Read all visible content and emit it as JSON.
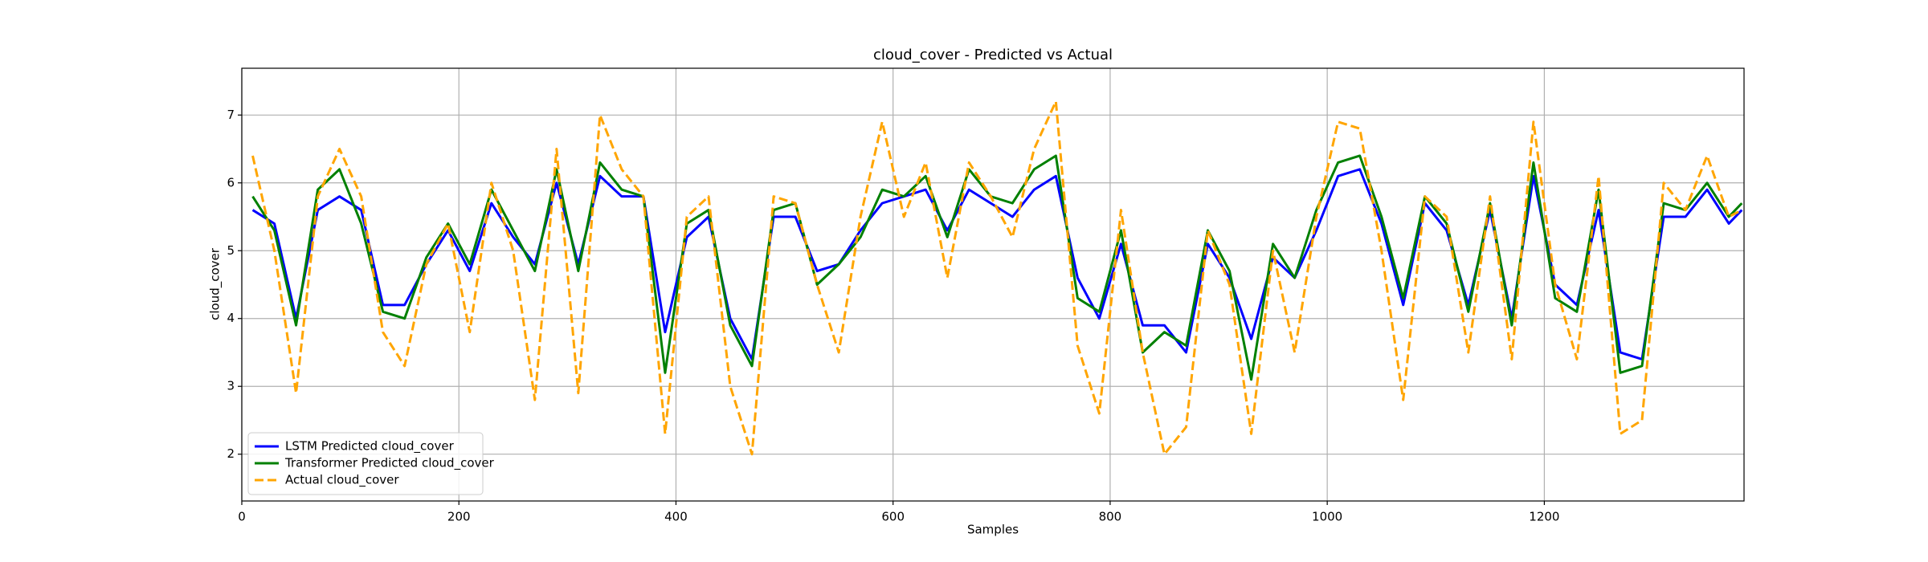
{
  "chart_data": {
    "type": "line",
    "title": "cloud_cover - Predicted vs Actual",
    "x_label": "Samples",
    "y_label": "cloud_cover",
    "x": [
      10,
      30,
      50,
      70,
      90,
      110,
      130,
      150,
      170,
      190,
      210,
      230,
      250,
      270,
      290,
      310,
      330,
      350,
      370,
      390,
      410,
      430,
      450,
      470,
      490,
      510,
      530,
      550,
      570,
      590,
      610,
      630,
      650,
      670,
      690,
      710,
      730,
      750,
      770,
      790,
      810,
      830,
      850,
      870,
      890,
      910,
      930,
      950,
      970,
      990,
      1010,
      1030,
      1050,
      1070,
      1090,
      1110,
      1130,
      1150,
      1170,
      1190,
      1210,
      1230,
      1250,
      1270,
      1290,
      1310,
      1330,
      1350,
      1370,
      1382
    ],
    "series": [
      {
        "name": "LSTM Predicted cloud_cover",
        "color": "#0000ff",
        "dashed": false,
        "values": [
          5.6,
          5.4,
          4.0,
          5.6,
          5.8,
          5.6,
          4.2,
          4.2,
          4.8,
          5.3,
          4.7,
          5.7,
          5.2,
          4.8,
          6.0,
          4.8,
          6.1,
          5.8,
          5.8,
          3.8,
          5.2,
          5.5,
          4.0,
          3.4,
          5.5,
          5.5,
          4.7,
          4.8,
          5.3,
          5.7,
          5.8,
          5.9,
          5.3,
          5.9,
          5.7,
          5.5,
          5.9,
          6.1,
          4.6,
          4.0,
          5.1,
          3.9,
          3.9,
          3.5,
          5.1,
          4.6,
          3.7,
          4.9,
          4.6,
          5.3,
          6.1,
          6.2,
          5.4,
          4.2,
          5.7,
          5.3,
          4.2,
          5.6,
          4.0,
          6.1,
          4.5,
          4.2,
          5.6,
          3.5,
          3.4,
          5.5,
          5.5,
          5.9,
          5.4,
          5.6
        ]
      },
      {
        "name": "Transformer Predicted cloud_cover",
        "color": "#008000",
        "dashed": false,
        "values": [
          5.8,
          5.3,
          3.9,
          5.9,
          6.2,
          5.4,
          4.1,
          4.0,
          4.9,
          5.4,
          4.8,
          5.9,
          5.3,
          4.7,
          6.2,
          4.7,
          6.3,
          5.9,
          5.8,
          3.2,
          5.4,
          5.6,
          3.9,
          3.3,
          5.6,
          5.7,
          4.5,
          4.8,
          5.2,
          5.9,
          5.8,
          6.1,
          5.2,
          6.2,
          5.8,
          5.7,
          6.2,
          6.4,
          4.3,
          4.1,
          5.3,
          3.5,
          3.8,
          3.6,
          5.3,
          4.7,
          3.1,
          5.1,
          4.6,
          5.6,
          6.3,
          6.4,
          5.5,
          4.3,
          5.8,
          5.4,
          4.1,
          5.7,
          3.9,
          6.3,
          4.3,
          4.1,
          5.9,
          3.2,
          3.3,
          5.7,
          5.6,
          6.0,
          5.5,
          5.7
        ]
      },
      {
        "name": "Actual cloud_cover",
        "color": "#ffa500",
        "dashed": true,
        "values": [
          6.4,
          5.0,
          2.9,
          5.8,
          6.5,
          5.8,
          3.8,
          3.3,
          4.8,
          5.4,
          3.8,
          6.0,
          5.0,
          2.8,
          6.5,
          2.9,
          7.0,
          6.2,
          5.8,
          2.3,
          5.5,
          5.8,
          3.0,
          2.0,
          5.8,
          5.7,
          4.5,
          3.5,
          5.5,
          6.9,
          5.5,
          6.3,
          4.6,
          6.3,
          5.8,
          5.2,
          6.5,
          7.2,
          3.6,
          2.6,
          5.6,
          3.5,
          2.0,
          2.4,
          5.3,
          4.5,
          2.3,
          5.0,
          3.5,
          5.5,
          6.9,
          6.8,
          5.0,
          2.8,
          5.8,
          5.5,
          3.5,
          5.8,
          3.4,
          6.9,
          4.5,
          3.4,
          6.1,
          2.3,
          2.5,
          6.0,
          5.6,
          6.4,
          5.5,
          5.6
        ]
      }
    ],
    "xlim": [
      0,
      1384
    ],
    "ylim": [
      1.31,
      7.69
    ],
    "xticks": [
      0,
      200,
      400,
      600,
      800,
      1000,
      1200
    ],
    "yticks": [
      2,
      3,
      4,
      5,
      6,
      7
    ],
    "grid": true,
    "legend": "lower left"
  }
}
